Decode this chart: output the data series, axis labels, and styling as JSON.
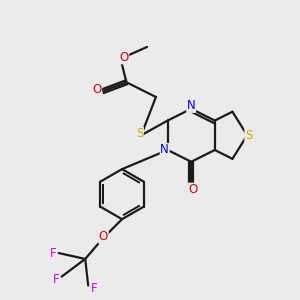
{
  "bg_color": "#ebebeb",
  "bond_color": "#1a1a1a",
  "bond_width": 1.6,
  "atoms": {
    "N": "#0000ff",
    "O": "#dd0000",
    "S": "#ccaa00",
    "F": "#dd00dd",
    "C": "#1a1a1a"
  }
}
